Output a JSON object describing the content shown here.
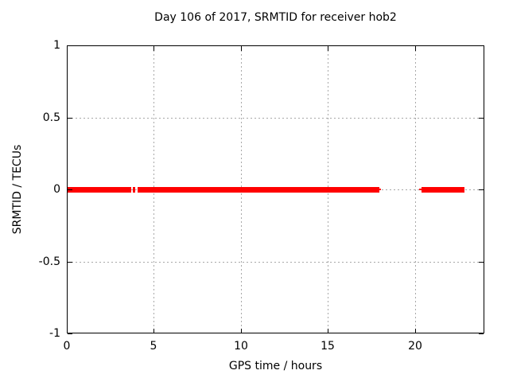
{
  "chart_data": {
    "type": "line",
    "title": "Day 106 of 2017, SRMTID for receiver hob2",
    "xlabel": "GPS time / hours",
    "ylabel": "SRMTID / TECUs",
    "xlim": [
      0,
      24
    ],
    "ylim": [
      -1,
      1
    ],
    "xticks": [
      {
        "value": 0,
        "label": "0"
      },
      {
        "value": 5,
        "label": "5"
      },
      {
        "value": 10,
        "label": "10"
      },
      {
        "value": 15,
        "label": "15"
      },
      {
        "value": 20,
        "label": "20"
      }
    ],
    "yticks": [
      {
        "value": 1,
        "label": "1"
      },
      {
        "value": 0.5,
        "label": "0.5"
      },
      {
        "value": 0,
        "label": "0"
      },
      {
        "value": -0.5,
        "label": "-0.5"
      },
      {
        "value": -1,
        "label": "-1"
      }
    ],
    "grid": true,
    "legend": false,
    "series": [
      {
        "name": "SRMTID",
        "color": "#ff0000",
        "y_value": 0,
        "thick_segments_hours": [
          [
            0.0,
            3.72
          ],
          [
            3.81,
            3.96
          ],
          [
            4.06,
            17.97
          ],
          [
            20.41,
            22.86
          ]
        ],
        "thin_segments_hours": [
          [
            17.97,
            18.07
          ],
          [
            20.23,
            20.41
          ]
        ]
      }
    ]
  },
  "colors": {
    "series": "#ff0000",
    "grid": "#a8a8a8",
    "axis": "#000000",
    "background": "#ffffff"
  }
}
